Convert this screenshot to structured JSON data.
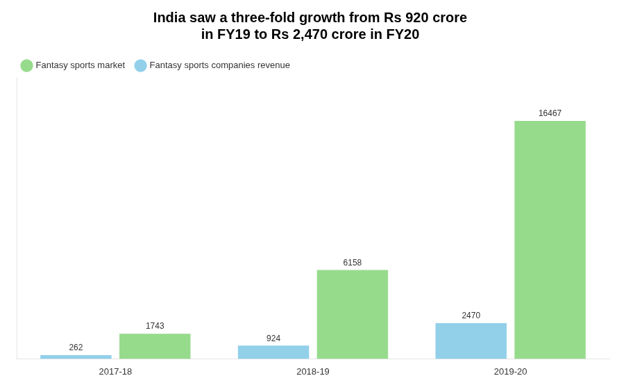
{
  "chart_data": {
    "type": "bar",
    "title": "India saw a three-fold growth from Rs 920 crore\nin FY19 to Rs 2,470 crore in FY20",
    "categories": [
      "2017-18",
      "2018-19",
      "2019-20"
    ],
    "series": [
      {
        "name": "Fantasy sports companies revenue",
        "color": "#92d0ea",
        "values": [
          262,
          924,
          2470
        ]
      },
      {
        "name": "Fantasy sports market",
        "color": "#96db8c",
        "values": [
          1743,
          6158,
          16467
        ]
      }
    ],
    "ylim": [
      0,
      19500
    ],
    "grid": false,
    "legend": "upper left",
    "data_labels": true,
    "tick_labels": "x"
  }
}
